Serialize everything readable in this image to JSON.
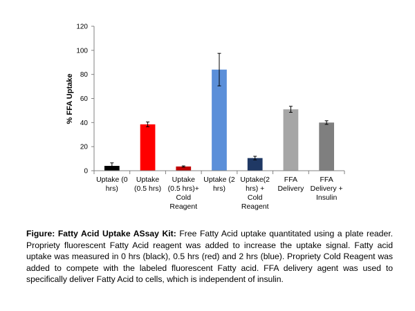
{
  "chart_data": {
    "type": "bar",
    "ylabel": "% FFA Uptake",
    "ylim": [
      0,
      120
    ],
    "yticks": [
      0,
      20,
      40,
      60,
      80,
      100,
      120
    ],
    "grid": false,
    "legend": "none",
    "categories": [
      [
        "Uptake (0",
        "hrs)"
      ],
      [
        "Uptake",
        "(0.5 hrs)"
      ],
      [
        "Uptake",
        "(0.5 hrs)+",
        "Cold",
        "Reagent"
      ],
      [
        "Uptake (2",
        "hrs)"
      ],
      [
        "Uptake(2",
        "hrs) +",
        "Cold",
        "Reagent"
      ],
      [
        "FFA",
        "Delivery"
      ],
      [
        "FFA",
        "Delivery +",
        "Insulin"
      ]
    ],
    "values": [
      4,
      38.5,
      3.5,
      84,
      10.5,
      51,
      40
    ],
    "errors": [
      2.5,
      2,
      0.5,
      13.5,
      1.5,
      2.5,
      1.5
    ],
    "colors": [
      "#000000",
      "#ff0000",
      "#c00000",
      "#5b8fd9",
      "#1f3864",
      "#a6a6a6",
      "#7f7f7f"
    ]
  },
  "caption": {
    "bold": "Figure: Fatty Acid Uptake ASsay Kit:",
    "text": " Free Fatty Acid uptake quantitated using a plate reader. Propriety fluorescent Fatty Acid reagent was added to increase the uptake signal. Fatty acid uptake was measured in 0 hrs (black), 0.5 hrs (red) and 2 hrs (blue). Propriety Cold Reagent was added to compete with the labeled fluorescent Fatty acid. FFA delivery agent was used to specifically deliver Fatty Acid to cells, which is independent of insulin."
  }
}
